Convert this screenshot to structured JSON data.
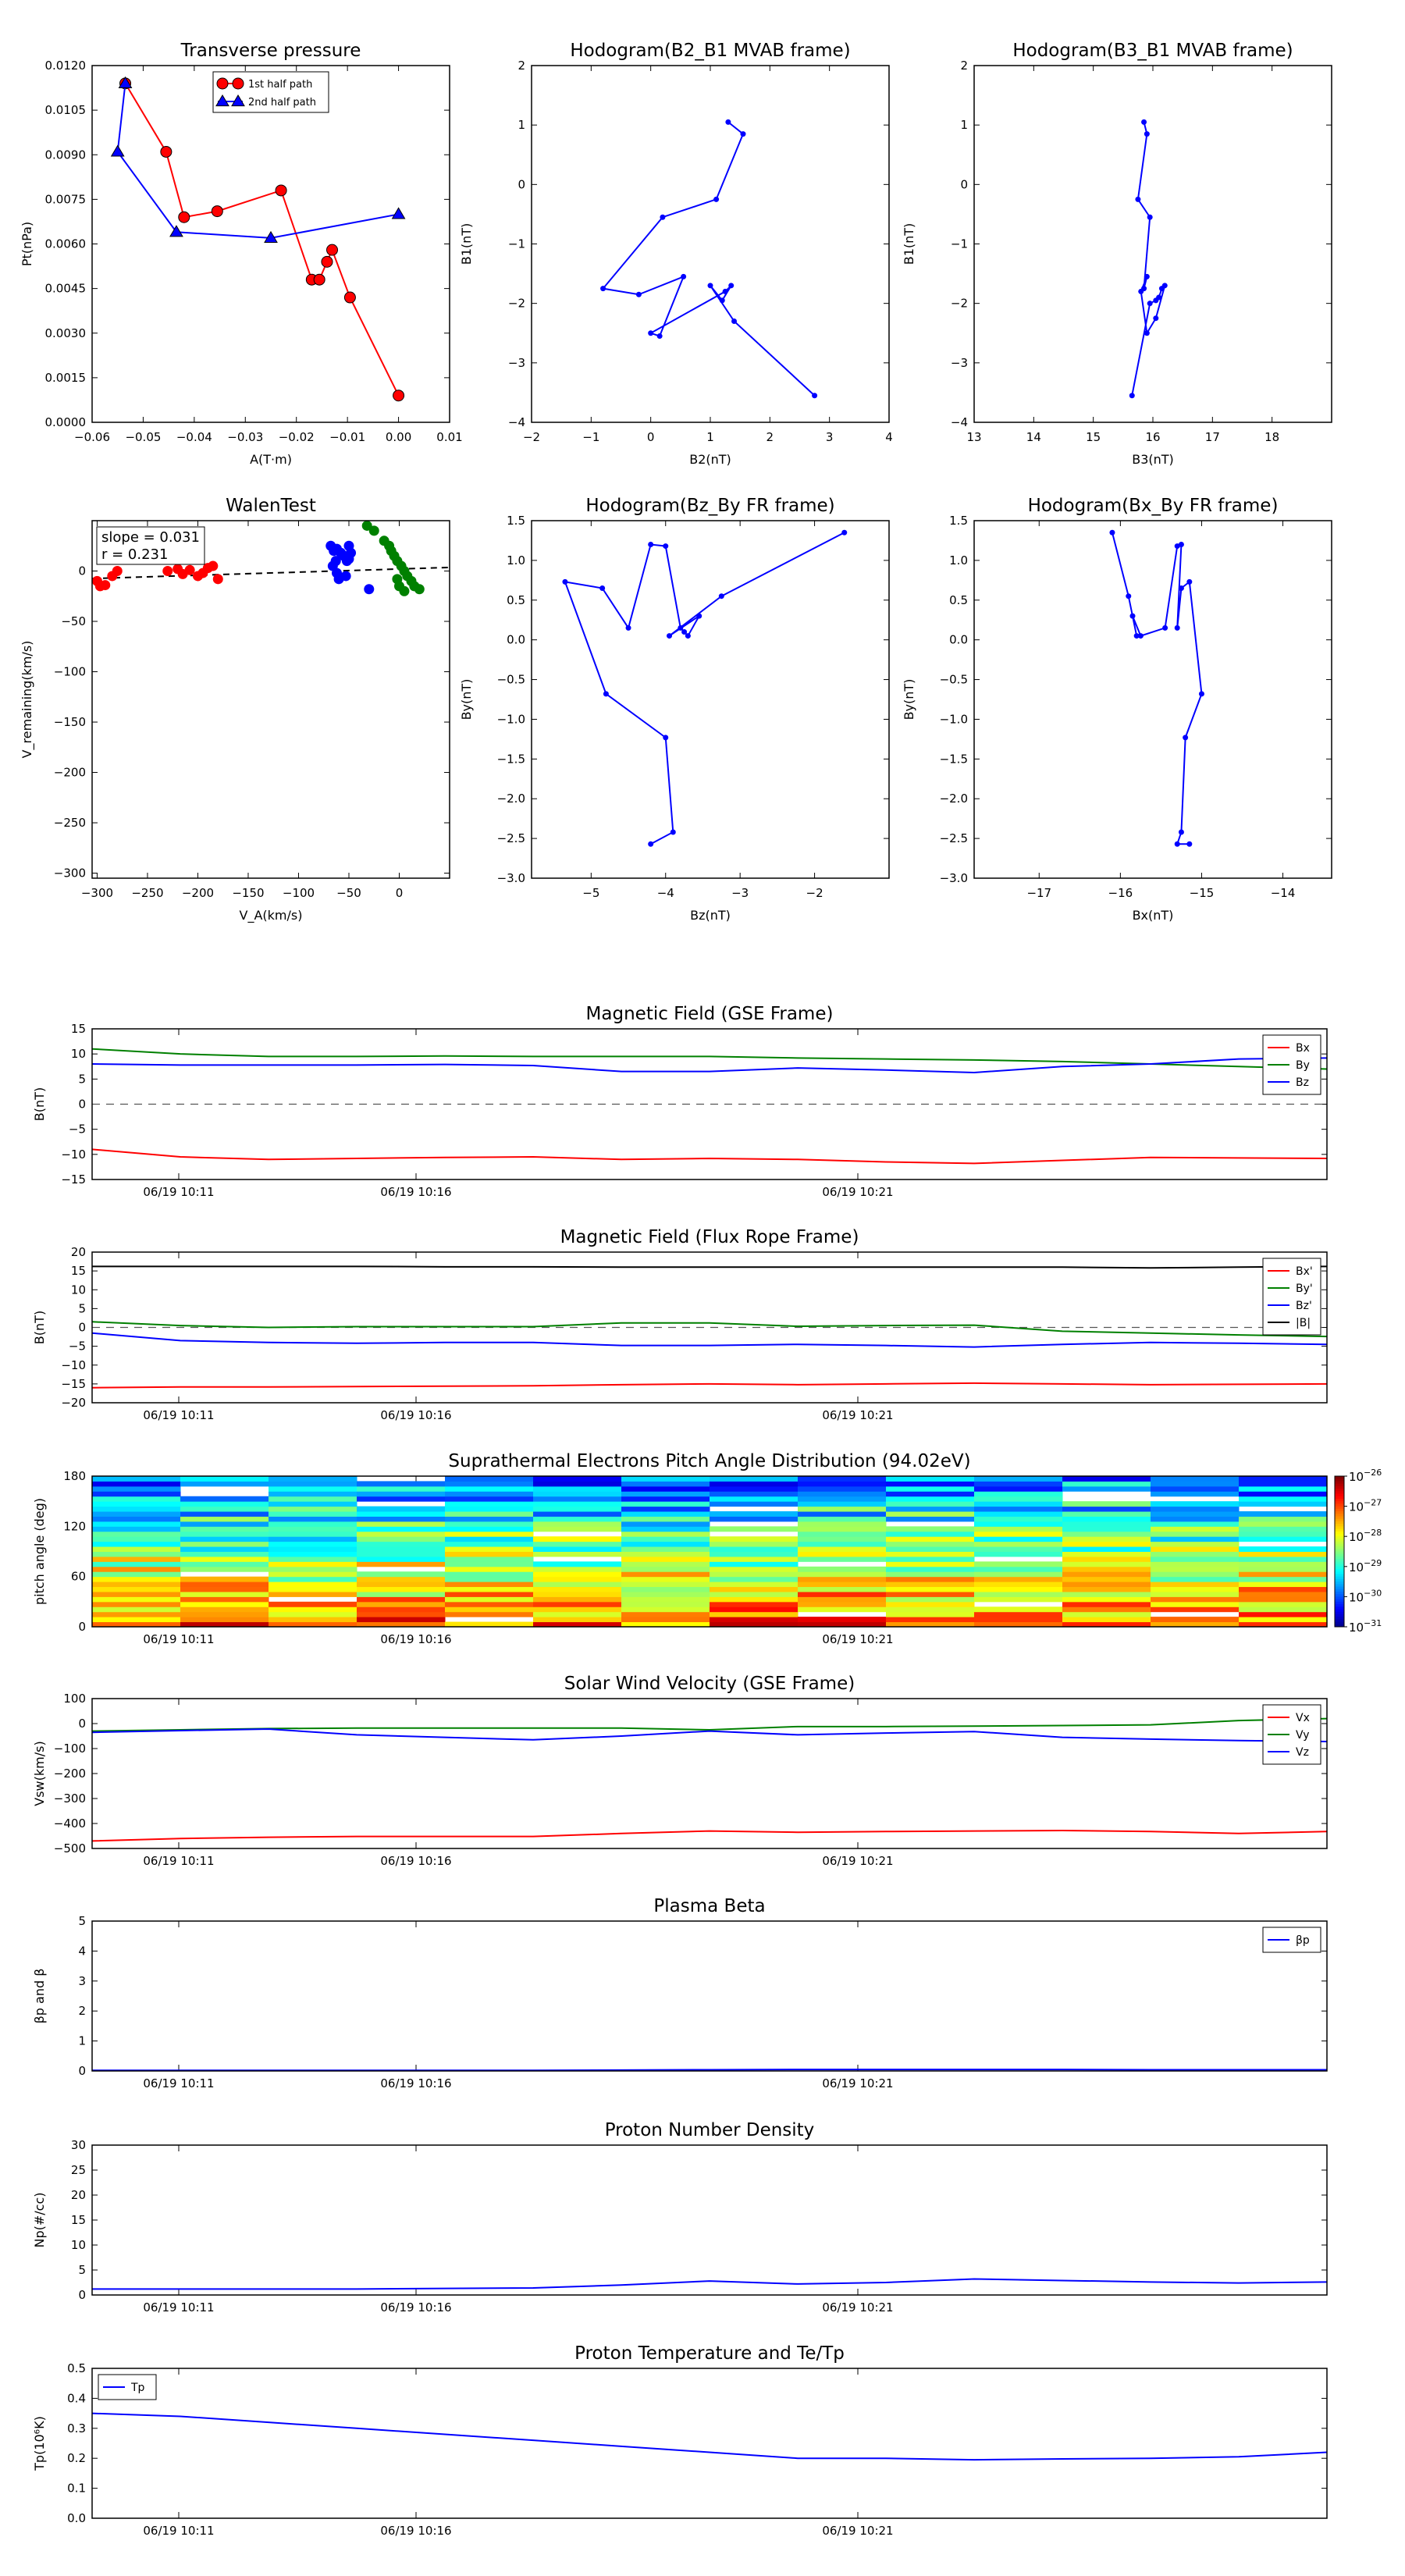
{
  "chart_data": [
    {
      "type": "line",
      "title": "Transverse pressure",
      "xlabel": "A(T·m)",
      "ylabel": "Pt(nPa)",
      "xlim": [
        -0.06,
        0.01
      ],
      "ylim": [
        0,
        0.012
      ],
      "xticks": [
        "−0.06",
        "−0.05",
        "−0.04",
        "−0.03",
        "−0.02",
        "−0.01",
        "0.00",
        "0.01"
      ],
      "yticks": [
        "0.0000",
        "0.0015",
        "0.0030",
        "0.0045",
        "0.0060",
        "0.0075",
        "0.0090",
        "0.0105",
        "0.0120"
      ],
      "legend": "top-center",
      "series": [
        {
          "name": "1st half path",
          "color": "#ff0000",
          "marker": "circle",
          "x": [
            -0.0535,
            -0.0455,
            -0.042,
            -0.0355,
            -0.023,
            -0.017,
            -0.0155,
            -0.014,
            -0.013,
            -0.0095,
            0.0
          ],
          "y": [
            0.0114,
            0.0091,
            0.0069,
            0.0071,
            0.0078,
            0.0048,
            0.0048,
            0.0054,
            0.0058,
            0.0042,
            0.0009
          ]
        },
        {
          "name": "2nd half path",
          "color": "#0000ff",
          "marker": "triangle",
          "x": [
            -0.0535,
            -0.055,
            -0.0435,
            -0.025,
            0.0
          ],
          "y": [
            0.0114,
            0.0091,
            0.0064,
            0.0062,
            0.007
          ]
        }
      ]
    },
    {
      "type": "line",
      "title": "Hodogram(B2_B1 MVAB frame)",
      "xlabel": "B2(nT)",
      "ylabel": "B1(nT)",
      "xlim": [
        -2,
        4
      ],
      "ylim": [
        -4,
        2
      ],
      "xticks": [
        "−2",
        "−1",
        "0",
        "1",
        "2",
        "3",
        "4"
      ],
      "yticks": [
        "−4",
        "−3",
        "−2",
        "−1",
        "0",
        "1",
        "2"
      ],
      "series": [
        {
          "color": "#0000ff",
          "x": [
            1.3,
            1.55,
            1.1,
            0.2,
            -0.8,
            -0.2,
            0.55,
            0.15,
            0.0,
            1.25,
            1.35,
            1.2,
            1.0,
            1.4,
            2.75
          ],
          "y": [
            1.05,
            0.85,
            -0.25,
            -0.55,
            -1.75,
            -1.85,
            -1.55,
            -2.55,
            -2.5,
            -1.8,
            -1.7,
            -1.95,
            -1.7,
            -2.3,
            -3.55
          ]
        }
      ]
    },
    {
      "type": "line",
      "title": "Hodogram(B3_B1 MVAB frame)",
      "xlabel": "B3(nT)",
      "ylabel": "B1(nT)",
      "xlim": [
        13,
        19
      ],
      "ylim": [
        -4,
        2
      ],
      "xticks": [
        "13",
        "14",
        "15",
        "16",
        "17",
        "18"
      ],
      "yticks": [
        "−4",
        "−3",
        "−2",
        "−1",
        "0",
        "1",
        "2"
      ],
      "series": [
        {
          "color": "#0000ff",
          "x": [
            15.85,
            15.9,
            15.75,
            15.95,
            15.85,
            15.9,
            15.8,
            15.9,
            16.05,
            16.2,
            16.15,
            16.1,
            16.05,
            15.95,
            15.65
          ],
          "y": [
            1.05,
            0.85,
            -0.25,
            -0.55,
            -1.75,
            -1.55,
            -1.8,
            -2.5,
            -2.25,
            -1.7,
            -1.75,
            -1.9,
            -1.95,
            -2.0,
            -3.55
          ]
        }
      ]
    },
    {
      "type": "scatter",
      "title": "WalenTest",
      "xlabel": "V_A(km/s)",
      "ylabel": "V_remaining(km/s)",
      "xlim": [
        -305,
        50
      ],
      "ylim": [
        -305,
        50
      ],
      "xticks": [
        "−300",
        "−250",
        "−200",
        "−150",
        "−100",
        "−50",
        "0"
      ],
      "yticks": [
        "−300",
        "−250",
        "−200",
        "−150",
        "−100",
        "−50",
        "0"
      ],
      "annotation": [
        "slope = 0.031",
        "r = 0.231"
      ],
      "fit_line": {
        "slope": 0.031,
        "intercept": 2.0
      },
      "series": [
        {
          "color": "#ff0000",
          "x": [
            -300,
            -297,
            -292,
            -285,
            -280,
            -230,
            -220,
            -215,
            -208,
            -200,
            -195,
            -190,
            -185,
            -180
          ],
          "y": [
            -10,
            -15,
            -14,
            -5,
            0,
            0,
            2,
            -3,
            1,
            -5,
            -2,
            3,
            5,
            -8
          ]
        },
        {
          "color": "#0000ff",
          "x": [
            -68,
            -65,
            -62,
            -58,
            -55,
            -52,
            -50,
            -50,
            -48,
            -63,
            -66,
            -62,
            -60,
            -53,
            -30
          ],
          "y": [
            25,
            20,
            22,
            18,
            15,
            10,
            12,
            25,
            18,
            10,
            5,
            -2,
            -8,
            -5,
            -18
          ]
        },
        {
          "color": "#008000",
          "x": [
            -32,
            -25,
            -15,
            -10,
            -8,
            -5,
            -2,
            2,
            5,
            8,
            12,
            15,
            20,
            5,
            0,
            -2
          ],
          "y": [
            45,
            40,
            30,
            25,
            20,
            15,
            10,
            5,
            0,
            -5,
            -10,
            -15,
            -18,
            -20,
            -15,
            -8
          ]
        }
      ]
    },
    {
      "type": "line",
      "title": "Hodogram(Bz_By FR frame)",
      "xlabel": "Bz(nT)",
      "ylabel": "By(nT)",
      "xlim": [
        -5.8,
        -1.0
      ],
      "ylim": [
        -3.0,
        1.5
      ],
      "xticks": [
        "−5",
        "−4",
        "−3",
        "−2"
      ],
      "yticks": [
        "−3.0",
        "−2.5",
        "−2.0",
        "−1.5",
        "−1.0",
        "−0.5",
        "0.0",
        "0.5",
        "1.0",
        "1.5"
      ],
      "series": [
        {
          "color": "#0000ff",
          "x": [
            -1.6,
            -3.25,
            -3.95,
            -3.55,
            -3.7,
            -3.75,
            -3.8,
            -4.0,
            -4.2,
            -4.5,
            -4.85,
            -5.35,
            -4.8,
            -4.0,
            -3.9,
            -4.2
          ],
          "y": [
            1.35,
            0.55,
            0.05,
            0.3,
            0.05,
            0.1,
            0.15,
            1.18,
            1.2,
            0.15,
            0.65,
            0.73,
            -0.68,
            -1.23,
            -2.42,
            -2.57
          ]
        }
      ]
    },
    {
      "type": "line",
      "title": "Hodogram(Bx_By FR frame)",
      "xlabel": "Bx(nT)",
      "ylabel": "By(nT)",
      "xlim": [
        -17.8,
        -13.4
      ],
      "ylim": [
        -3.0,
        1.5
      ],
      "xticks": [
        "−17",
        "−16",
        "−15",
        "−14"
      ],
      "yticks": [
        "−3.0",
        "−2.5",
        "−2.0",
        "−1.5",
        "−1.0",
        "−0.5",
        "0.0",
        "0.5",
        "1.0",
        "1.5"
      ],
      "series": [
        {
          "color": "#0000ff",
          "x": [
            -16.1,
            -15.9,
            -15.8,
            -15.85,
            -15.75,
            -15.45,
            -15.3,
            -15.25,
            -15.3,
            -15.25,
            -15.15,
            -15.0,
            -15.2,
            -15.25,
            -15.3,
            -15.15
          ],
          "y": [
            1.35,
            0.55,
            0.05,
            0.3,
            0.05,
            0.15,
            1.18,
            1.2,
            0.15,
            0.65,
            0.73,
            -0.68,
            -1.23,
            -2.42,
            -2.57,
            -2.57
          ]
        }
      ]
    },
    {
      "type": "line",
      "title": "Magnetic Field (GSE Frame)",
      "ylabel": "B(nT)",
      "ylim": [
        -15,
        15
      ],
      "yticks": [
        "−15",
        "−10",
        "−5",
        "0",
        "5",
        "10",
        "15"
      ],
      "xticks": [
        "06/19 10:11",
        "06/19 10:16",
        "06/19 10:21"
      ],
      "legend": "top-right",
      "x": [
        0,
        1,
        2,
        3,
        4,
        5,
        6,
        7,
        8,
        9,
        10,
        11,
        12,
        13,
        14
      ],
      "series": [
        {
          "name": "Bx",
          "color": "#ff0000",
          "values": [
            -9.0,
            -10.5,
            -11.0,
            -10.8,
            -10.6,
            -10.5,
            -11.0,
            -10.8,
            -11.0,
            -11.5,
            -11.8,
            -11.2,
            -10.6,
            -10.7,
            -10.8
          ]
        },
        {
          "name": "By",
          "color": "#008000",
          "values": [
            11.0,
            10.0,
            9.5,
            9.5,
            9.6,
            9.5,
            9.5,
            9.5,
            9.2,
            9.0,
            8.8,
            8.5,
            8.0,
            7.5,
            7.0
          ]
        },
        {
          "name": "Bz",
          "color": "#0000ff",
          "values": [
            8.0,
            7.8,
            7.8,
            7.8,
            7.9,
            7.7,
            6.5,
            6.5,
            7.2,
            6.8,
            6.3,
            7.5,
            8.0,
            9.0,
            9.2
          ]
        }
      ]
    },
    {
      "type": "line",
      "title": "Magnetic Field (Flux Rope Frame)",
      "ylabel": "B(nT)",
      "ylim": [
        -20,
        20
      ],
      "yticks": [
        "−20",
        "−15",
        "−10",
        "−5",
        "0",
        "5",
        "10",
        "15",
        "20"
      ],
      "xticks": [
        "06/19 10:11",
        "06/19 10:16",
        "06/19 10:21"
      ],
      "legend": "top-right",
      "x": [
        0,
        1,
        2,
        3,
        4,
        5,
        6,
        7,
        8,
        9,
        10,
        11,
        12,
        13,
        14
      ],
      "series": [
        {
          "name": "Bx'",
          "color": "#ff0000",
          "values": [
            -16,
            -15.8,
            -15.8,
            -15.7,
            -15.6,
            -15.5,
            -15.2,
            -15.0,
            -15.2,
            -15.0,
            -14.8,
            -15.0,
            -15.2,
            -15.1,
            -15.0
          ]
        },
        {
          "name": "By'",
          "color": "#008000",
          "values": [
            1.5,
            0.5,
            0.0,
            0.2,
            0.2,
            0.2,
            1.2,
            1.2,
            0.3,
            0.5,
            0.6,
            -1.0,
            -1.5,
            -2.0,
            -2.4
          ]
        },
        {
          "name": "Bz'",
          "color": "#0000ff",
          "values": [
            -1.5,
            -3.5,
            -4.0,
            -4.2,
            -4.0,
            -4.0,
            -4.8,
            -4.8,
            -4.5,
            -4.8,
            -5.2,
            -4.5,
            -4.0,
            -4.2,
            -4.5
          ]
        },
        {
          "name": "|B|",
          "color": "#000000",
          "values": [
            16.2,
            16.2,
            16.2,
            16.2,
            16.1,
            16.1,
            16.0,
            16.0,
            16.0,
            16.0,
            16.0,
            16.0,
            15.8,
            16.0,
            16.2
          ]
        }
      ]
    },
    {
      "type": "heatmap",
      "title": "Suprathermal Electrons Pitch Angle Distribution (94.02eV)",
      "ylabel": "pitch angle (deg)",
      "ylim": [
        0,
        180
      ],
      "yticks": [
        "0",
        "60",
        "120",
        "180"
      ],
      "xticks": [
        "06/19 10:11",
        "06/19 10:16",
        "06/19 10:21"
      ],
      "colorbar_ticks": [
        "10",
        "10",
        "10",
        "10",
        "10",
        "10"
      ],
      "colorbar_exponents": [
        "−26",
        "−27",
        "−28",
        "−29",
        "−30",
        "−31"
      ],
      "colorbar_log_range": [
        -31,
        -26
      ],
      "columns": 14,
      "bins": 30
    },
    {
      "type": "line",
      "title": "Solar Wind Velocity (GSE Frame)",
      "ylabel": "Vsw(km/s)",
      "ylim": [
        -500,
        100
      ],
      "yticks": [
        "−500",
        "−400",
        "−300",
        "−200",
        "−100",
        "0",
        "100"
      ],
      "xticks": [
        "06/19 10:11",
        "06/19 10:16",
        "06/19 10:21"
      ],
      "legend": "top-right",
      "x": [
        0,
        1,
        2,
        3,
        4,
        5,
        6,
        7,
        8,
        9,
        10,
        11,
        12,
        13,
        14
      ],
      "series": [
        {
          "name": "Vx",
          "color": "#ff0000",
          "values": [
            -470,
            -460,
            -455,
            -452,
            -452,
            -452,
            -440,
            -430,
            -435,
            -432,
            -430,
            -428,
            -432,
            -440,
            -432
          ]
        },
        {
          "name": "Vy",
          "color": "#008000",
          "values": [
            -30,
            -25,
            -20,
            -18,
            -18,
            -18,
            -18,
            -25,
            -12,
            -12,
            -10,
            -8,
            -5,
            12,
            20
          ]
        },
        {
          "name": "Vz",
          "color": "#0000ff",
          "values": [
            -35,
            -28,
            -22,
            -45,
            -55,
            -65,
            -50,
            -30,
            -45,
            -38,
            -32,
            -55,
            -62,
            -68,
            -72
          ]
        }
      ]
    },
    {
      "type": "line",
      "title": "Plasma Beta",
      "ylabel": "βp and β",
      "ylim": [
        0,
        5
      ],
      "yticks": [
        "0",
        "1",
        "2",
        "3",
        "4",
        "5"
      ],
      "xticks": [
        "06/19 10:11",
        "06/19 10:16",
        "06/19 10:21"
      ],
      "legend": "top-right",
      "x": [
        0,
        1,
        2,
        3,
        4,
        5,
        6,
        7,
        8,
        9,
        10,
        11,
        12,
        13,
        14
      ],
      "series": [
        {
          "name": "βp",
          "color": "#0000ff",
          "values": [
            0.02,
            0.02,
            0.02,
            0.02,
            0.02,
            0.02,
            0.03,
            0.04,
            0.05,
            0.05,
            0.05,
            0.05,
            0.04,
            0.04,
            0.04
          ]
        }
      ]
    },
    {
      "type": "line",
      "title": "Proton Number Density",
      "ylabel": "Np(#/cc)",
      "ylim": [
        0,
        30
      ],
      "yticks": [
        "0",
        "5",
        "10",
        "15",
        "20",
        "25",
        "30"
      ],
      "xticks": [
        "06/19 10:11",
        "06/19 10:16",
        "06/19 10:21"
      ],
      "x": [
        0,
        1,
        2,
        3,
        4,
        5,
        6,
        7,
        8,
        9,
        10,
        11,
        12,
        13,
        14
      ],
      "series": [
        {
          "color": "#0000ff",
          "values": [
            1.2,
            1.2,
            1.2,
            1.2,
            1.3,
            1.4,
            2.0,
            2.8,
            2.2,
            2.5,
            3.2,
            2.9,
            2.6,
            2.4,
            2.6
          ]
        }
      ]
    },
    {
      "type": "line",
      "title": "Proton Temperature and Te/Tp",
      "ylabel": "Tp(10⁶K)",
      "ylim": [
        0,
        0.5
      ],
      "yticks": [
        "0.0",
        "0.1",
        "0.2",
        "0.3",
        "0.4",
        "0.5"
      ],
      "xticks": [
        "06/19 10:11",
        "06/19 10:16",
        "06/19 10:21"
      ],
      "legend": "top-left",
      "x": [
        0,
        1,
        2,
        3,
        4,
        5,
        6,
        7,
        8,
        9,
        10,
        11,
        12,
        13,
        14
      ],
      "series": [
        {
          "name": "Tp",
          "color": "#0000ff",
          "values": [
            0.35,
            0.34,
            0.32,
            0.3,
            0.28,
            0.26,
            0.24,
            0.22,
            0.2,
            0.2,
            0.195,
            0.198,
            0.2,
            0.205,
            0.22
          ]
        }
      ]
    }
  ]
}
